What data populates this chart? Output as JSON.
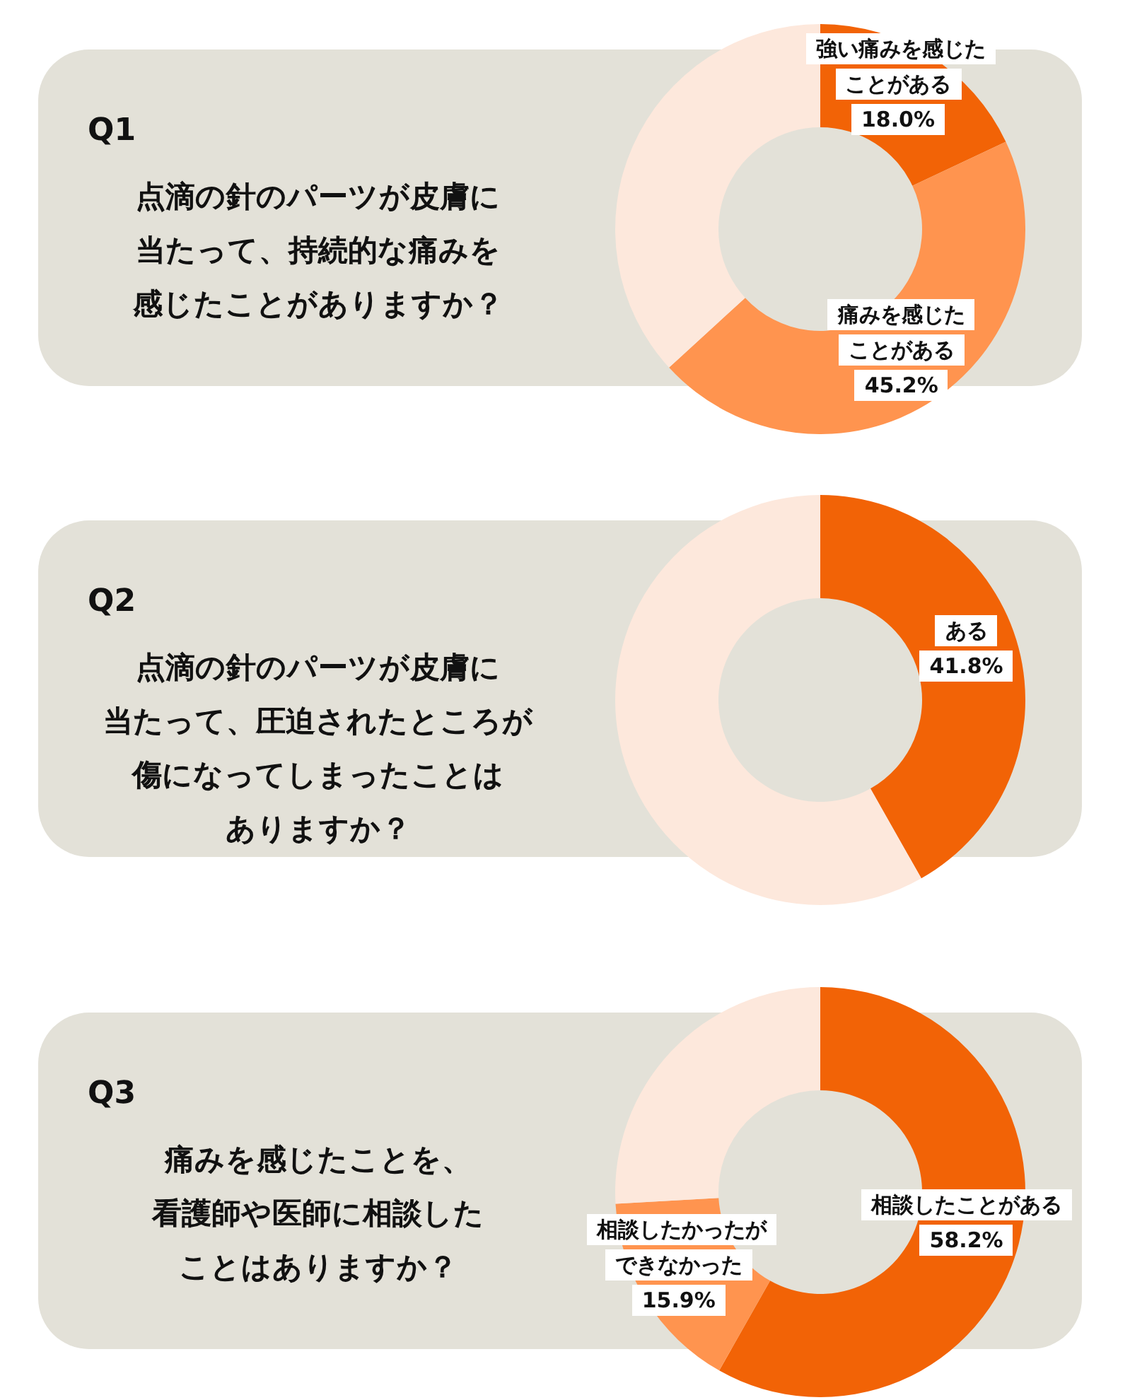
{
  "chart_data": [
    {
      "type": "donut",
      "annotations": [
        "Q1"
      ],
      "title": "点滴の針のパーツが皮膚に当たって、持続的な痛みを感じたことがありますか？",
      "categories": [
        "強い痛みを感じたことがある",
        "痛みを感じたことがある",
        null
      ],
      "values": [
        18.0,
        45.2,
        36.8
      ],
      "value_labels": [
        "18.0%",
        "45.2%",
        null
      ],
      "colors": [
        "#f26306",
        "#ff944f",
        "#fde8dc"
      ]
    },
    {
      "type": "donut",
      "annotations": [
        "Q2"
      ],
      "title": "点滴の針のパーツが皮膚に当たって、圧迫されたところが傷になってしまったことはありますか？",
      "categories": [
        "ある",
        null
      ],
      "values": [
        41.8,
        58.2
      ],
      "value_labels": [
        "41.8%",
        null
      ],
      "colors": [
        "#f26306",
        "#fde8dc"
      ]
    },
    {
      "type": "donut",
      "annotations": [
        "Q3"
      ],
      "title": "痛みを感じたことを、看護師や医師に相談したことはありますか？",
      "categories": [
        "相談したことがある",
        "相談したかったができなかった",
        null
      ],
      "values": [
        58.2,
        15.9,
        25.9
      ],
      "value_labels": [
        "58.2%",
        "15.9%",
        null
      ],
      "colors": [
        "#f26306",
        "#ff944f",
        "#fde8dc"
      ]
    }
  ]
}
